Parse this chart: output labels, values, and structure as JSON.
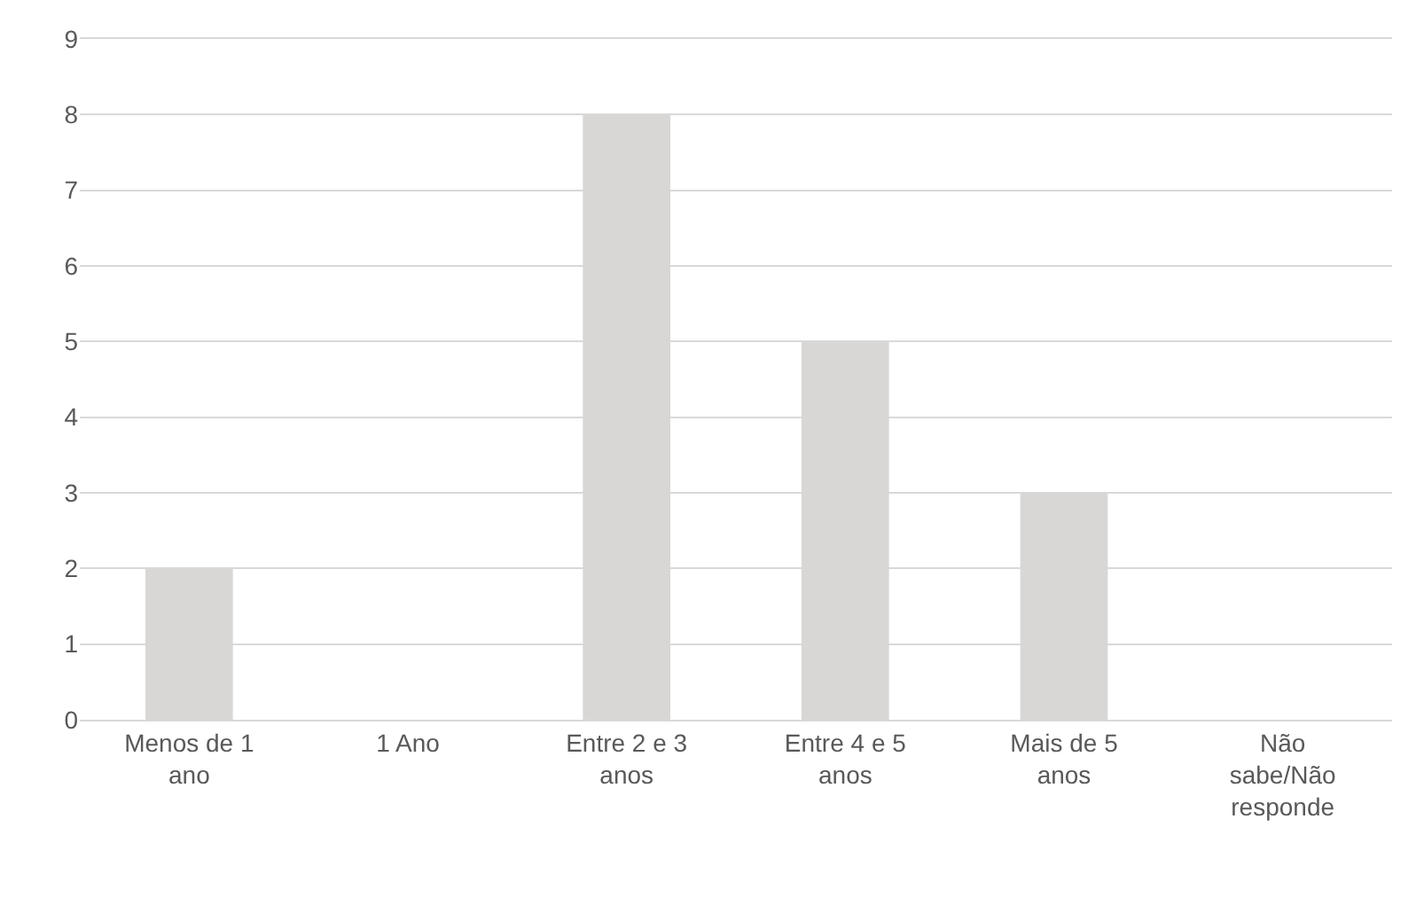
{
  "chart_data": {
    "type": "bar",
    "categories": [
      "Menos de 1 ano",
      "1 Ano",
      "Entre 2 e 3 anos",
      "Entre 4 e 5 anos",
      "Mais de 5 anos",
      "Não sabe/Não responde"
    ],
    "values": [
      2,
      0,
      8,
      5,
      3,
      0
    ],
    "color": "#d9d6d6",
    "ylim": [
      0,
      9
    ],
    "yticks": [
      0,
      1,
      2,
      3,
      4,
      5,
      6,
      7,
      8,
      9
    ],
    "grid": "y"
  }
}
